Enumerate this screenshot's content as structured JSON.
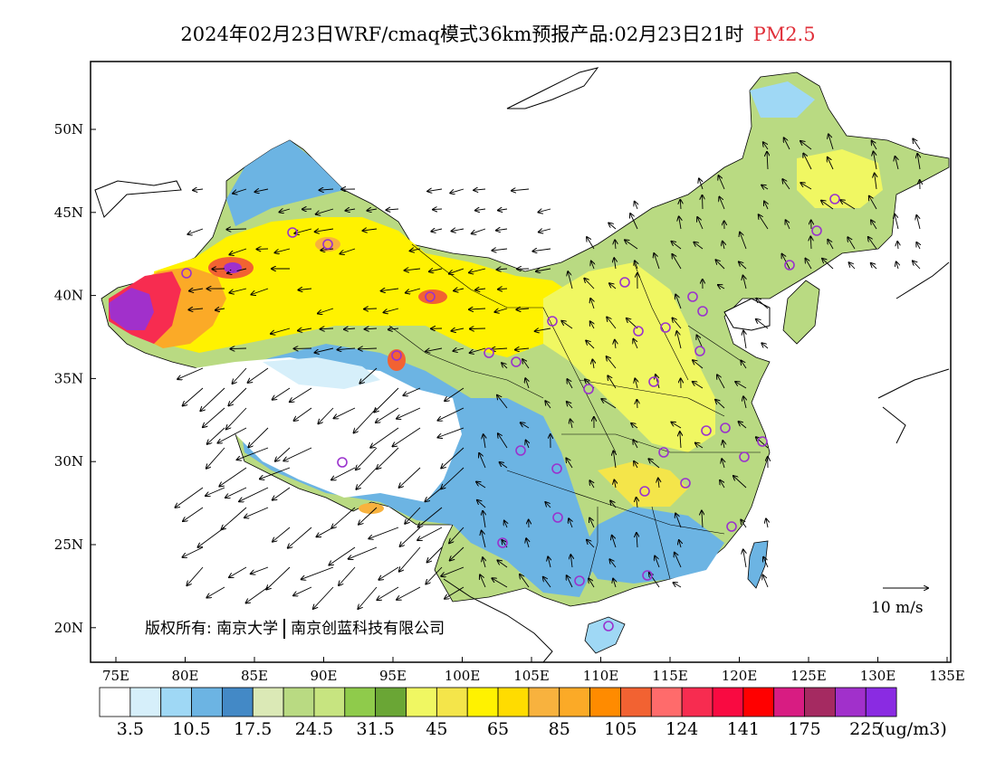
{
  "title": {
    "main": "2024年02月23日WRF/cmaq模式36km预报产品:02月23日21时",
    "variable": "PM2.5",
    "variable_color": "#e0303a"
  },
  "axes": {
    "lon_labels": [
      "75E",
      "80E",
      "85E",
      "90E",
      "95E",
      "100E",
      "105E",
      "110E",
      "115E",
      "120E",
      "125E",
      "130E",
      "135E"
    ],
    "lat_labels": [
      "50N",
      "45N",
      "40N",
      "35N",
      "30N",
      "25N",
      "20N"
    ]
  },
  "copyright": {
    "prefix": "版权所有:",
    "org1": "南京大学",
    "org2": "南京创蓝科技有限公司"
  },
  "reference_vector": {
    "label": "10 m/s"
  },
  "colorbar": {
    "colors": [
      "#ffffff",
      "#d6effa",
      "#9fd8f5",
      "#6cb4e3",
      "#4389c6",
      "#dbe9b6",
      "#b9da82",
      "#c7e480",
      "#8fcb4b",
      "#6aa635",
      "#f0f762",
      "#f4e54a",
      "#fff200",
      "#ffdc00",
      "#f8b23e",
      "#fbaa27",
      "#ff8b00",
      "#f26232",
      "#ff6b6b",
      "#f72c50",
      "#f90a41",
      "#ff0000",
      "#d81c82",
      "#a52a61",
      "#a130cb",
      "#8a2be2"
    ],
    "labels": [
      "3.5",
      "10.5",
      "17.5",
      "24.5",
      "31.5",
      "45",
      "65",
      "85",
      "105",
      "124",
      "141",
      "175",
      "225"
    ],
    "unit": "(ug/m3)"
  },
  "stations_color": "#9a32cd"
}
